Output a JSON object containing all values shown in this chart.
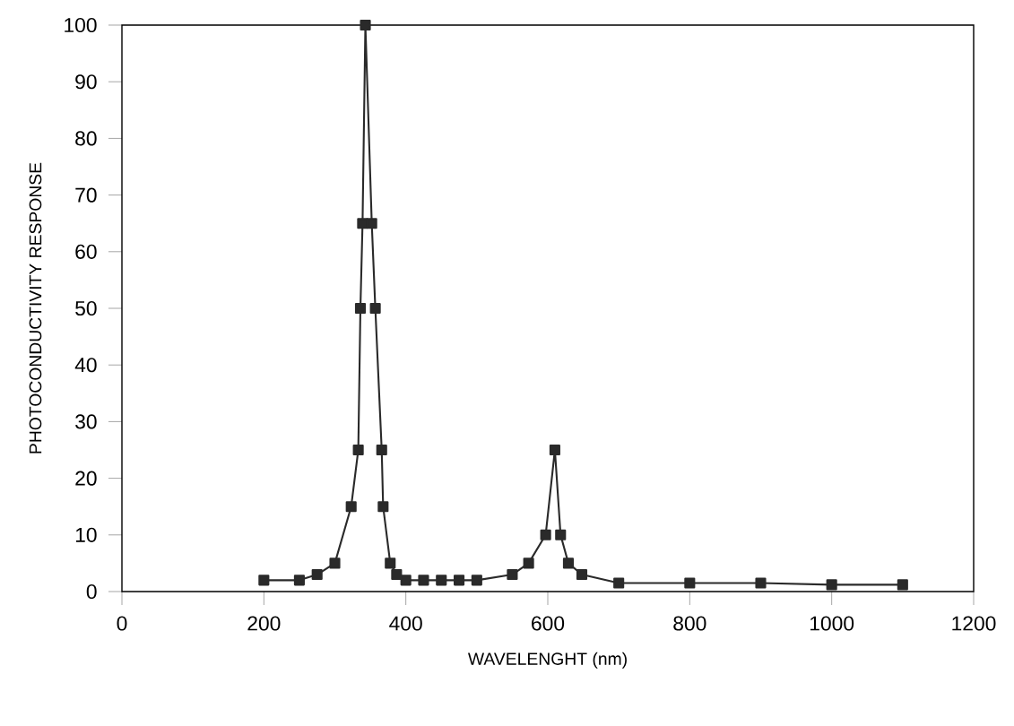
{
  "chart_data": {
    "type": "line",
    "xlabel": "WAVELENGHT (nm)",
    "ylabel": "PHOTOCONDUCTIVITY RESPONSE",
    "x": [
      200,
      250,
      275,
      300,
      323,
      333,
      336,
      339,
      343,
      352,
      357,
      366,
      368,
      378,
      387,
      400,
      425,
      450,
      475,
      500,
      550,
      573,
      597,
      610,
      618,
      629,
      648,
      700,
      800,
      900,
      1000,
      1100
    ],
    "values": [
      2,
      2,
      3,
      5,
      15,
      25,
      50,
      65,
      100,
      65,
      50,
      25,
      15,
      5,
      3,
      2,
      2,
      2,
      2,
      2,
      3,
      5,
      10,
      25,
      10,
      5,
      3,
      1.5,
      1.5,
      1.5,
      1.2,
      1.2
    ],
    "color": "#2a2a2a",
    "marker": "square",
    "line_style": "solid",
    "xlim": [
      0,
      1200
    ],
    "ylim": [
      0,
      100
    ],
    "xticks": [
      0,
      200,
      400,
      600,
      800,
      1000,
      1200
    ],
    "yticks": [
      0,
      10,
      20,
      30,
      40,
      50,
      60,
      70,
      80,
      90,
      100
    ],
    "grid": false
  }
}
